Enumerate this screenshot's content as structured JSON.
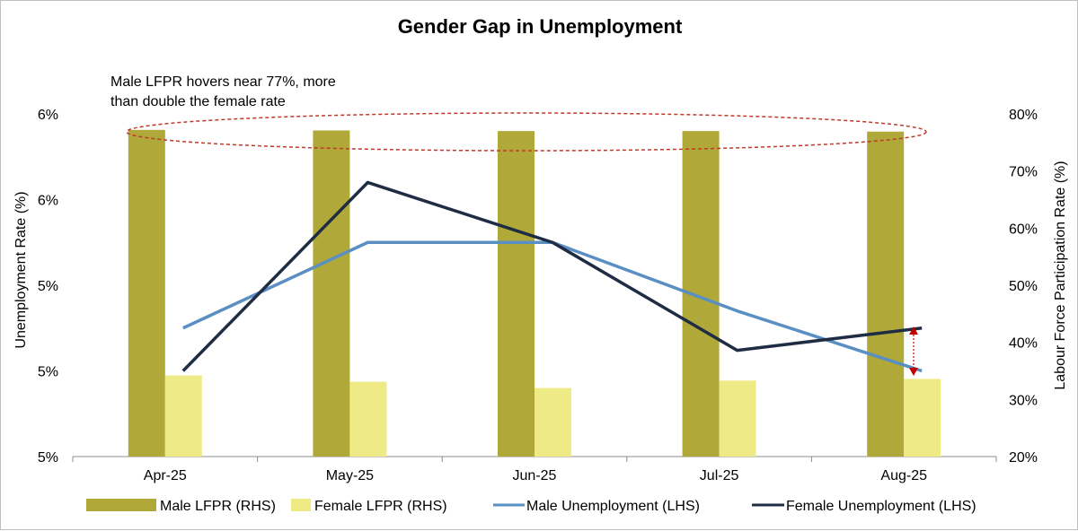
{
  "chart_data": {
    "type": "bar",
    "title": "Gender Gap in Unemployment",
    "categories": [
      "Apr-25",
      "May-25",
      "Jun-25",
      "Jul-25",
      "Aug-25"
    ],
    "left_axis": {
      "label": "Unemployment Rate (%)",
      "tick_labels": [
        "5%",
        "5%",
        "5%",
        "6%",
        "6%"
      ],
      "range": [
        4.4,
        6.4
      ]
    },
    "right_axis": {
      "label": "Labour Force Participation Rate (%)",
      "tick_labels": [
        "20%",
        "30%",
        "40%",
        "50%",
        "60%",
        "70%",
        "80%"
      ],
      "range": [
        20,
        80
      ]
    },
    "series": [
      {
        "name": "Male LFPR (RHS)",
        "type": "bar",
        "axis": "right",
        "color": "#b0a838",
        "values": [
          77.2,
          77.1,
          77.0,
          77.0,
          76.9
        ]
      },
      {
        "name": "Female LFPR (RHS)",
        "type": "bar",
        "axis": "right",
        "color": "#eeeb87",
        "values": [
          34.2,
          33.1,
          32.0,
          33.3,
          33.6
        ]
      },
      {
        "name": "Male Unemployment (LHS)",
        "type": "line",
        "axis": "left",
        "color": "#5a8fc3",
        "values": [
          5.15,
          5.65,
          5.65,
          5.25,
          4.9
        ]
      },
      {
        "name": "Female Unemployment (LHS)",
        "type": "line",
        "axis": "left",
        "color": "#1f2d44",
        "values": [
          4.9,
          6.0,
          5.65,
          5.02,
          5.15
        ]
      }
    ],
    "annotation": {
      "text_line1": "Male LFPR hovers near 77%, more",
      "text_line2": "than double the female rate"
    },
    "grid": false,
    "legend_position": "bottom"
  }
}
